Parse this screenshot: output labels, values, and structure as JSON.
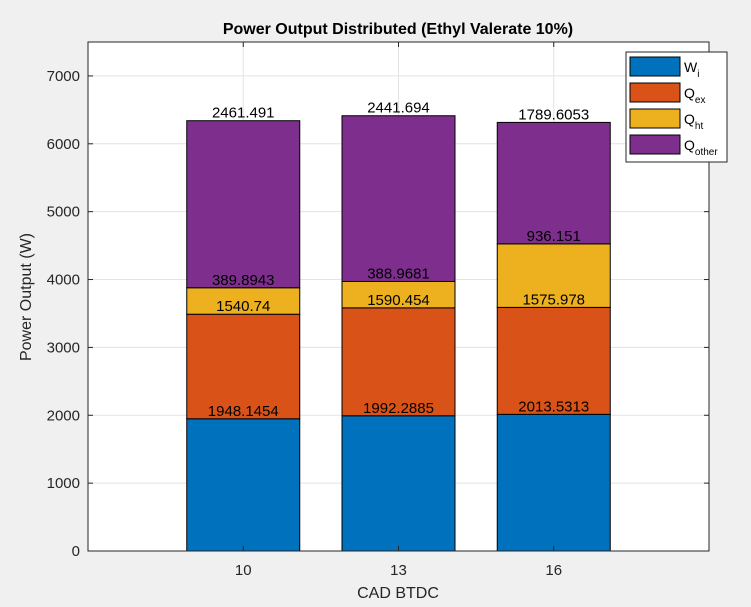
{
  "chart_data": {
    "type": "bar",
    "stacked": true,
    "title": "Power Output Distributed (Ethyl Valerate 10%)",
    "xlabel": "CAD BTDC",
    "ylabel": "Power Output (W)",
    "categories": [
      "10",
      "13",
      "16"
    ],
    "ylim": [
      0,
      7500
    ],
    "yticks": [
      0,
      1000,
      2000,
      3000,
      4000,
      5000,
      6000,
      7000
    ],
    "grid": true,
    "legend_position": "top-right",
    "series": [
      {
        "name": "W_i",
        "legend_main": "W",
        "legend_sub": "i",
        "color": "#0072BD",
        "values": [
          1948.1454,
          1992.2885,
          2013.5313
        ],
        "labels": [
          "1948.1454",
          "1992.2885",
          "2013.5313"
        ]
      },
      {
        "name": "Q_ex",
        "legend_main": "Q",
        "legend_sub": "ex",
        "color": "#D95319",
        "values": [
          1540.74,
          1590.454,
          1575.978
        ],
        "labels": [
          "1540.74",
          "1590.454",
          "1575.978"
        ]
      },
      {
        "name": "Q_ht",
        "legend_main": "Q",
        "legend_sub": "ht",
        "color": "#EDB120",
        "values": [
          389.8943,
          388.9681,
          936.151
        ],
        "labels": [
          "389.8943",
          "388.9681",
          "936.151"
        ]
      },
      {
        "name": "Q_other",
        "legend_main": "Q",
        "legend_sub": "other",
        "color": "#7E2F8E",
        "values": [
          2461.491,
          2441.694,
          1789.6053
        ],
        "labels": [
          "2461.491",
          "2441.694",
          "1789.6053"
        ]
      }
    ]
  }
}
